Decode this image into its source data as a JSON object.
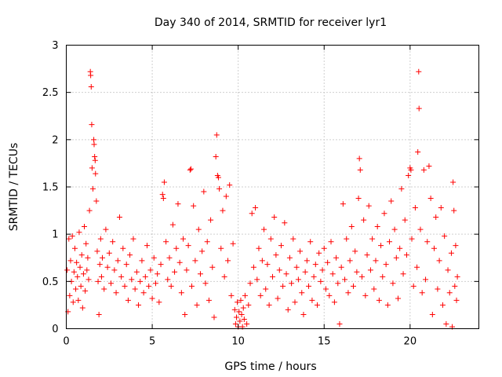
{
  "chart_data": {
    "type": "scatter",
    "title": "Day 340 of 2014, SRMTID for receiver lyr1",
    "xlabel": "GPS time / hours",
    "ylabel": "SRMTID / TECUs",
    "xlim": [
      0,
      24
    ],
    "ylim": [
      0,
      3
    ],
    "grid": true,
    "marker": "+",
    "color": "#ff0000",
    "xticks": [
      0,
      5,
      10,
      15,
      20
    ],
    "yticks": [
      0,
      0.5,
      1,
      1.5,
      2,
      2.5,
      3
    ],
    "xtick_labels": [
      "0",
      "5",
      "10",
      "15",
      "20"
    ],
    "ytick_labels": [
      "0",
      "0.5",
      "1",
      "1.5",
      "2",
      "2.5",
      "3"
    ],
    "series": [
      {
        "name": "lyr1",
        "points": [
          [
            0.05,
            0.62
          ],
          [
            0.1,
            0.18
          ],
          [
            0.15,
            0.95
          ],
          [
            0.2,
            0.35
          ],
          [
            0.25,
            0.72
          ],
          [
            0.3,
            0.5
          ],
          [
            0.35,
            0.98
          ],
          [
            0.4,
            0.28
          ],
          [
            0.45,
            0.6
          ],
          [
            0.5,
            0.85
          ],
          [
            0.55,
            0.42
          ],
          [
            0.6,
            0.7
          ],
          [
            0.65,
            0.55
          ],
          [
            0.7,
            0.3
          ],
          [
            0.75,
            1.02
          ],
          [
            0.8,
            0.65
          ],
          [
            0.85,
            0.45
          ],
          [
            0.9,
            0.78
          ],
          [
            0.95,
            0.22
          ],
          [
            1.0,
            0.58
          ],
          [
            1.05,
            1.08
          ],
          [
            1.1,
            0.4
          ],
          [
            1.15,
            0.9
          ],
          [
            1.2,
            0.62
          ],
          [
            1.25,
            0.75
          ],
          [
            1.3,
            0.52
          ],
          [
            1.35,
            1.25
          ],
          [
            1.4,
            2.72
          ],
          [
            1.42,
            2.68
          ],
          [
            1.45,
            2.56
          ],
          [
            1.48,
            2.16
          ],
          [
            1.5,
            1.7
          ],
          [
            1.55,
            1.48
          ],
          [
            1.6,
            2.0
          ],
          [
            1.62,
            1.95
          ],
          [
            1.65,
            1.82
          ],
          [
            1.68,
            1.78
          ],
          [
            1.7,
            1.64
          ],
          [
            1.75,
            1.35
          ],
          [
            1.8,
            0.82
          ],
          [
            1.85,
            0.5
          ],
          [
            1.9,
            0.15
          ],
          [
            1.95,
            0.68
          ],
          [
            2.0,
            0.95
          ],
          [
            2.05,
            0.55
          ],
          [
            2.1,
            0.75
          ],
          [
            2.2,
            0.42
          ],
          [
            2.3,
            1.05
          ],
          [
            2.4,
            0.65
          ],
          [
            2.5,
            0.8
          ],
          [
            2.6,
            0.48
          ],
          [
            2.7,
            0.92
          ],
          [
            2.8,
            0.62
          ],
          [
            2.9,
            0.38
          ],
          [
            3.0,
            0.72
          ],
          [
            3.1,
            1.18
          ],
          [
            3.2,
            0.55
          ],
          [
            3.3,
            0.85
          ],
          [
            3.4,
            0.45
          ],
          [
            3.5,
            0.68
          ],
          [
            3.6,
            0.3
          ],
          [
            3.7,
            0.78
          ],
          [
            3.8,
            0.52
          ],
          [
            3.9,
            0.95
          ],
          [
            4.0,
            0.42
          ],
          [
            4.1,
            0.6
          ],
          [
            4.2,
            0.25
          ],
          [
            4.3,
            0.5
          ],
          [
            4.4,
            0.72
          ],
          [
            4.5,
            0.38
          ],
          [
            4.6,
            0.55
          ],
          [
            4.7,
            0.88
          ],
          [
            4.8,
            0.45
          ],
          [
            4.9,
            0.62
          ],
          [
            5.0,
            0.32
          ],
          [
            5.1,
            0.75
          ],
          [
            5.2,
            0.48
          ],
          [
            5.3,
            0.58
          ],
          [
            5.4,
            0.28
          ],
          [
            5.5,
            0.68
          ],
          [
            5.6,
            1.42
          ],
          [
            5.65,
            1.38
          ],
          [
            5.7,
            1.55
          ],
          [
            5.8,
            0.92
          ],
          [
            5.9,
            0.52
          ],
          [
            6.0,
            0.75
          ],
          [
            6.1,
            0.45
          ],
          [
            6.2,
            1.1
          ],
          [
            6.3,
            0.6
          ],
          [
            6.4,
            0.85
          ],
          [
            6.5,
            1.32
          ],
          [
            6.6,
            0.7
          ],
          [
            6.7,
            0.38
          ],
          [
            6.8,
            0.95
          ],
          [
            6.9,
            0.15
          ],
          [
            7.0,
            0.62
          ],
          [
            7.1,
            0.88
          ],
          [
            7.2,
            1.68
          ],
          [
            7.25,
            1.69
          ],
          [
            7.3,
            0.45
          ],
          [
            7.4,
            1.3
          ],
          [
            7.5,
            0.72
          ],
          [
            7.6,
            0.25
          ],
          [
            7.7,
            1.05
          ],
          [
            7.8,
            0.58
          ],
          [
            7.9,
            0.82
          ],
          [
            8.0,
            1.45
          ],
          [
            8.1,
            0.48
          ],
          [
            8.2,
            0.92
          ],
          [
            8.3,
            0.3
          ],
          [
            8.4,
            1.15
          ],
          [
            8.5,
            0.65
          ],
          [
            8.6,
            0.12
          ],
          [
            8.7,
            1.82
          ],
          [
            8.75,
            2.05
          ],
          [
            8.8,
            1.62
          ],
          [
            8.85,
            1.6
          ],
          [
            8.9,
            1.48
          ],
          [
            9.0,
            0.85
          ],
          [
            9.1,
            1.25
          ],
          [
            9.2,
            0.55
          ],
          [
            9.3,
            1.4
          ],
          [
            9.4,
            0.72
          ],
          [
            9.5,
            1.52
          ],
          [
            9.6,
            0.35
          ],
          [
            9.7,
            0.9
          ],
          [
            9.8,
            0.2
          ],
          [
            9.85,
            0.05
          ],
          [
            9.9,
            0.12
          ],
          [
            9.95,
            0.28
          ],
          [
            10.0,
            0.02
          ],
          [
            10.05,
            0.18
          ],
          [
            10.1,
            0.08
          ],
          [
            10.15,
            0.3
          ],
          [
            10.2,
            0.15
          ],
          [
            10.25,
            0.02
          ],
          [
            10.3,
            0.22
          ],
          [
            10.35,
            0.1
          ],
          [
            10.4,
            0.35
          ],
          [
            10.5,
            0.05
          ],
          [
            10.6,
            0.25
          ],
          [
            10.7,
            0.48
          ],
          [
            10.8,
            1.22
          ],
          [
            10.9,
            0.65
          ],
          [
            11.0,
            1.28
          ],
          [
            11.1,
            0.52
          ],
          [
            11.2,
            0.85
          ],
          [
            11.3,
            0.35
          ],
          [
            11.4,
            0.72
          ],
          [
            11.5,
            1.05
          ],
          [
            11.6,
            0.42
          ],
          [
            11.7,
            0.68
          ],
          [
            11.8,
            0.25
          ],
          [
            11.9,
            0.95
          ],
          [
            12.0,
            0.55
          ],
          [
            12.1,
            1.18
          ],
          [
            12.2,
            0.78
          ],
          [
            12.3,
            0.32
          ],
          [
            12.4,
            0.62
          ],
          [
            12.5,
            0.88
          ],
          [
            12.6,
            0.45
          ],
          [
            12.7,
            1.12
          ],
          [
            12.8,
            0.58
          ],
          [
            12.9,
            0.2
          ],
          [
            13.0,
            0.75
          ],
          [
            13.1,
            0.48
          ],
          [
            13.2,
            0.95
          ],
          [
            13.3,
            0.28
          ],
          [
            13.4,
            0.65
          ],
          [
            13.5,
            0.52
          ],
          [
            13.6,
            0.82
          ],
          [
            13.7,
            0.38
          ],
          [
            13.8,
            0.15
          ],
          [
            13.9,
            0.6
          ],
          [
            14.0,
            0.72
          ],
          [
            14.1,
            0.45
          ],
          [
            14.2,
            0.92
          ],
          [
            14.3,
            0.3
          ],
          [
            14.4,
            0.55
          ],
          [
            14.5,
            0.68
          ],
          [
            14.6,
            0.25
          ],
          [
            14.7,
            0.8
          ],
          [
            14.8,
            0.5
          ],
          [
            14.9,
            0.62
          ],
          [
            15.0,
            0.85
          ],
          [
            15.1,
            0.42
          ],
          [
            15.2,
            0.7
          ],
          [
            15.3,
            0.35
          ],
          [
            15.4,
            0.92
          ],
          [
            15.5,
            0.58
          ],
          [
            15.6,
            0.28
          ],
          [
            15.7,
            0.75
          ],
          [
            15.8,
            0.48
          ],
          [
            15.9,
            0.05
          ],
          [
            16.0,
            0.65
          ],
          [
            16.1,
            1.32
          ],
          [
            16.2,
            0.52
          ],
          [
            16.3,
            0.95
          ],
          [
            16.4,
            0.38
          ],
          [
            16.5,
            0.72
          ],
          [
            16.6,
            1.08
          ],
          [
            16.7,
            0.45
          ],
          [
            16.8,
            0.82
          ],
          [
            16.9,
            0.6
          ],
          [
            17.0,
            1.38
          ],
          [
            17.05,
            1.8
          ],
          [
            17.1,
            1.68
          ],
          [
            17.2,
            0.55
          ],
          [
            17.3,
            1.15
          ],
          [
            17.4,
            0.35
          ],
          [
            17.5,
            0.78
          ],
          [
            17.6,
            1.3
          ],
          [
            17.7,
            0.62
          ],
          [
            17.8,
            0.95
          ],
          [
            17.9,
            0.42
          ],
          [
            18.0,
            0.72
          ],
          [
            18.1,
            1.08
          ],
          [
            18.2,
            0.3
          ],
          [
            18.3,
            0.88
          ],
          [
            18.4,
            0.55
          ],
          [
            18.5,
            1.22
          ],
          [
            18.6,
            0.68
          ],
          [
            18.7,
            0.25
          ],
          [
            18.8,
            0.92
          ],
          [
            18.9,
            1.35
          ],
          [
            19.0,
            0.48
          ],
          [
            19.1,
            1.05
          ],
          [
            19.2,
            0.75
          ],
          [
            19.3,
            0.32
          ],
          [
            19.4,
            0.85
          ],
          [
            19.5,
            1.48
          ],
          [
            19.6,
            0.58
          ],
          [
            19.7,
            1.15
          ],
          [
            19.8,
            0.78
          ],
          [
            19.9,
            1.62
          ],
          [
            20.0,
            1.7
          ],
          [
            20.05,
            1.68
          ],
          [
            20.1,
            0.95
          ],
          [
            20.2,
            0.45
          ],
          [
            20.3,
            1.28
          ],
          [
            20.4,
            0.65
          ],
          [
            20.45,
            1.87
          ],
          [
            20.5,
            2.72
          ],
          [
            20.52,
            2.33
          ],
          [
            20.6,
            1.05
          ],
          [
            20.7,
            0.38
          ],
          [
            20.8,
            1.68
          ],
          [
            20.9,
            0.52
          ],
          [
            21.0,
            0.92
          ],
          [
            21.1,
            1.72
          ],
          [
            21.2,
            1.38
          ],
          [
            21.3,
            0.15
          ],
          [
            21.4,
            0.85
          ],
          [
            21.5,
            1.18
          ],
          [
            21.6,
            0.42
          ],
          [
            21.7,
            0.72
          ],
          [
            21.8,
            1.28
          ],
          [
            21.9,
            0.25
          ],
          [
            22.0,
            0.98
          ],
          [
            22.1,
            0.05
          ],
          [
            22.2,
            0.62
          ],
          [
            22.3,
            0.38
          ],
          [
            22.4,
            0.8
          ],
          [
            22.45,
            0.02
          ],
          [
            22.5,
            1.55
          ],
          [
            22.55,
            1.25
          ],
          [
            22.6,
            0.45
          ],
          [
            22.65,
            0.88
          ],
          [
            22.7,
            0.3
          ],
          [
            22.75,
            0.55
          ]
        ]
      }
    ]
  }
}
